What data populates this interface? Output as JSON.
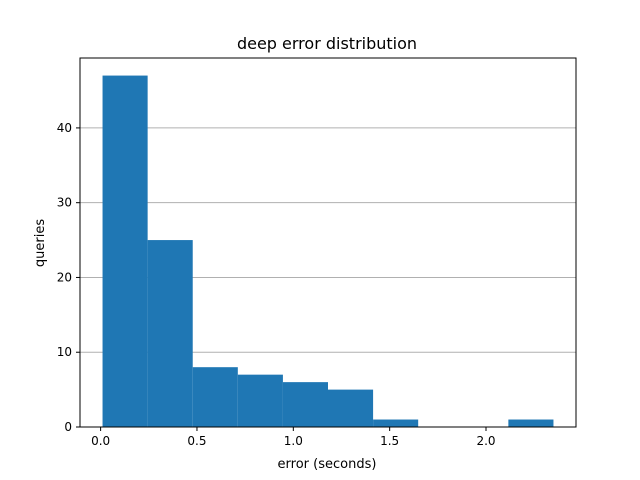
{
  "chart_data": {
    "type": "bar",
    "title": "deep error distribution",
    "xlabel": "error (seconds)",
    "ylabel": "queries",
    "bin_edges": [
      0.01,
      0.244,
      0.478,
      0.712,
      0.946,
      1.18,
      1.414,
      1.648,
      1.882,
      2.116,
      2.35
    ],
    "values": [
      47,
      25,
      8,
      7,
      6,
      5,
      1,
      0,
      0,
      1
    ],
    "xlim": [
      -0.107,
      2.467
    ],
    "ylim": [
      0,
      49.35
    ],
    "xticks": [
      {
        "value": 0.0,
        "label": "0.0"
      },
      {
        "value": 0.5,
        "label": "0.5"
      },
      {
        "value": 1.0,
        "label": "1.0"
      },
      {
        "value": 1.5,
        "label": "1.5"
      },
      {
        "value": 2.0,
        "label": "2.0"
      }
    ],
    "yticks": [
      {
        "value": 0,
        "label": "0"
      },
      {
        "value": 10,
        "label": "10"
      },
      {
        "value": 20,
        "label": "20"
      },
      {
        "value": 30,
        "label": "30"
      },
      {
        "value": 40,
        "label": "40"
      }
    ],
    "grid": "horizontal",
    "bar_color": "#1f77b4",
    "grid_color": "#b0b0b0"
  }
}
